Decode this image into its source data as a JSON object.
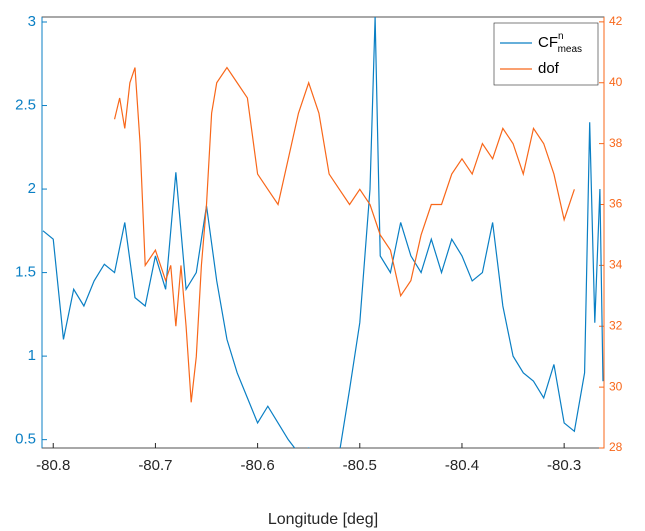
{
  "chart_data": {
    "type": "line",
    "xlabel": "Longitude [deg]",
    "xlim": [
      -80.811,
      -80.261
    ],
    "xticks": [
      -80.8,
      -80.7,
      -80.6,
      -80.5,
      -80.4,
      -80.3
    ],
    "ylim": [
      0.45,
      3.03
    ],
    "yticks": [
      0.5,
      1,
      1.5,
      2,
      2.5,
      3
    ],
    "y2lim": [
      28,
      42.16
    ],
    "y2ticks": [
      28,
      30,
      32,
      34,
      36,
      38,
      40,
      42
    ],
    "legend": "upper right",
    "box": true,
    "series": [
      {
        "name": "CF",
        "name_sup": "n",
        "name_sub": "meas",
        "color": "#0a7fc4",
        "axis": "y",
        "x": [
          -80.81,
          -80.8,
          -80.79,
          -80.78,
          -80.77,
          -80.76,
          -80.75,
          -80.74,
          -80.73,
          -80.72,
          -80.71,
          -80.7,
          -80.69,
          -80.68,
          -80.67,
          -80.66,
          -80.65,
          -80.64,
          -80.63,
          -80.62,
          -80.61,
          -80.6,
          -80.59,
          -80.58,
          -80.57,
          -80.56,
          -80.55,
          -80.54,
          -80.53,
          -80.52,
          -80.51,
          -80.5,
          -80.49,
          -80.485,
          -80.48,
          -80.47,
          -80.46,
          -80.45,
          -80.44,
          -80.43,
          -80.42,
          -80.41,
          -80.4,
          -80.39,
          -80.38,
          -80.37,
          -80.36,
          -80.35,
          -80.34,
          -80.33,
          -80.32,
          -80.31,
          -80.3,
          -80.29,
          -80.28,
          -80.275,
          -80.27,
          -80.265,
          -80.262
        ],
        "values": [
          1.75,
          1.7,
          1.1,
          1.4,
          1.3,
          1.45,
          1.55,
          1.5,
          1.8,
          1.35,
          1.3,
          1.6,
          1.4,
          2.1,
          1.4,
          1.5,
          1.9,
          1.45,
          1.1,
          0.9,
          0.75,
          0.6,
          0.7,
          0.6,
          0.5,
          0.42,
          0.45,
          0.4,
          0.38,
          0.42,
          0.8,
          1.2,
          2.0,
          3.03,
          1.6,
          1.5,
          1.8,
          1.6,
          1.5,
          1.7,
          1.5,
          1.7,
          1.6,
          1.45,
          1.5,
          1.8,
          1.3,
          1.0,
          0.9,
          0.85,
          0.75,
          0.95,
          0.6,
          0.55,
          0.9,
          2.4,
          1.2,
          2.0,
          0.85
        ]
      },
      {
        "name": "dof",
        "color": "#f8671a",
        "axis": "y2",
        "x": [
          -80.74,
          -80.735,
          -80.73,
          -80.725,
          -80.72,
          -80.715,
          -80.71,
          -80.7,
          -80.69,
          -80.685,
          -80.68,
          -80.675,
          -80.67,
          -80.665,
          -80.66,
          -80.655,
          -80.65,
          -80.645,
          -80.64,
          -80.63,
          -80.62,
          -80.61,
          -80.6,
          -80.59,
          -80.58,
          -80.57,
          -80.56,
          -80.55,
          -80.54,
          -80.53,
          -80.52,
          -80.51,
          -80.5,
          -80.49,
          -80.48,
          -80.47,
          -80.46,
          -80.45,
          -80.44,
          -80.43,
          -80.42,
          -80.41,
          -80.4,
          -80.39,
          -80.38,
          -80.37,
          -80.36,
          -80.35,
          -80.34,
          -80.33,
          -80.32,
          -80.31,
          -80.3,
          -80.29
        ],
        "values": [
          38.8,
          39.5,
          38.5,
          40,
          40.5,
          38,
          34,
          34.5,
          33.5,
          34,
          32,
          34,
          32,
          29.5,
          31,
          34,
          36,
          39,
          40,
          40.5,
          40,
          39.5,
          37,
          36.5,
          36,
          37.5,
          39,
          40,
          39,
          37,
          36.5,
          36,
          36.5,
          36,
          35,
          34.5,
          33,
          33.5,
          35,
          36,
          36,
          37,
          37.5,
          37,
          38,
          37.5,
          38.5,
          38,
          37,
          38.5,
          38,
          37,
          35.5,
          36.5
        ]
      }
    ]
  }
}
